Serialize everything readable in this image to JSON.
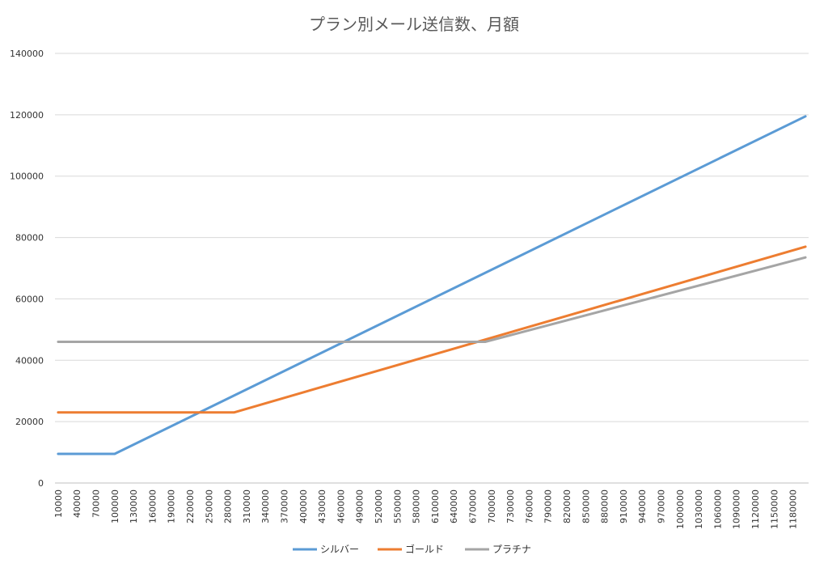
{
  "chart_data": {
    "type": "line",
    "title": "プラン別メール送信数、月額",
    "xlabel": "",
    "ylabel": "",
    "ylim": [
      0,
      140000
    ],
    "yticks": [
      0,
      20000,
      40000,
      60000,
      80000,
      100000,
      120000,
      140000
    ],
    "x_range": [
      10000,
      1200000
    ],
    "x_step": 10000,
    "x_tick_labels": [
      "10000",
      "40000",
      "70000",
      "100000",
      "130000",
      "160000",
      "190000",
      "220000",
      "250000",
      "280000",
      "310000",
      "340000",
      "370000",
      "400000",
      "430000",
      "460000",
      "490000",
      "520000",
      "550000",
      "580000",
      "610000",
      "640000",
      "670000",
      "700000",
      "730000",
      "760000",
      "790000",
      "820000",
      "850000",
      "880000",
      "910000",
      "940000",
      "970000",
      "1000000",
      "1030000",
      "1060000",
      "1090000",
      "1120000",
      "1150000",
      "1180000"
    ],
    "grid": "horizontal",
    "legend_position": "bottom",
    "series": [
      {
        "name": "シルバー",
        "color": "#5B9BD5",
        "points": [
          [
            10000,
            9500
          ],
          [
            100000,
            9500
          ],
          [
            1200000,
            119500
          ]
        ]
      },
      {
        "name": "ゴールド",
        "color": "#ED7D31",
        "points": [
          [
            10000,
            23000
          ],
          [
            290000,
            23000
          ],
          [
            1200000,
            77000
          ]
        ]
      },
      {
        "name": "プラチナ",
        "color": "#A5A5A5",
        "points": [
          [
            10000,
            46000
          ],
          [
            690000,
            46000
          ],
          [
            1200000,
            73500
          ]
        ]
      }
    ]
  }
}
